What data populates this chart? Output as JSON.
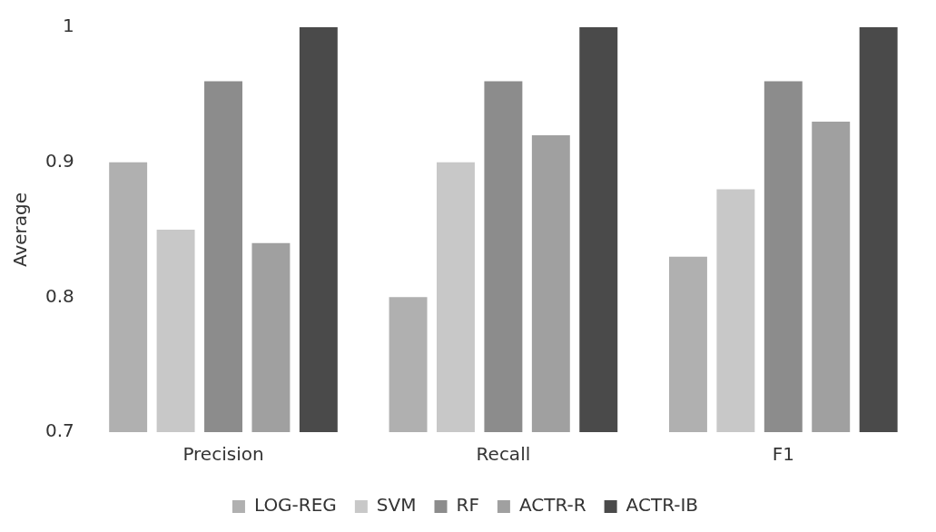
{
  "chart_data": {
    "type": "bar",
    "ylabel": "Average",
    "categories": [
      "Precision",
      "Recall",
      "F1"
    ],
    "series": [
      {
        "name": "LOG-REG",
        "color": "#b0b0b0",
        "values": [
          0.9,
          0.8,
          0.83
        ]
      },
      {
        "name": "SVM",
        "color": "#c8c8c8",
        "values": [
          0.85,
          0.9,
          0.88
        ]
      },
      {
        "name": "RF",
        "color": "#8c8c8c",
        "values": [
          0.96,
          0.96,
          0.96
        ]
      },
      {
        "name": "ACTR-R",
        "color": "#a0a0a0",
        "values": [
          0.84,
          0.92,
          0.93
        ]
      },
      {
        "name": "ACTR-IB",
        "color": "#4a4a4a",
        "values": [
          1,
          1,
          1
        ]
      }
    ],
    "ylim": [
      0.7,
      1
    ],
    "yticks": [
      0.7,
      0.8,
      0.9,
      1
    ],
    "grid": false,
    "legend": "bottom"
  }
}
